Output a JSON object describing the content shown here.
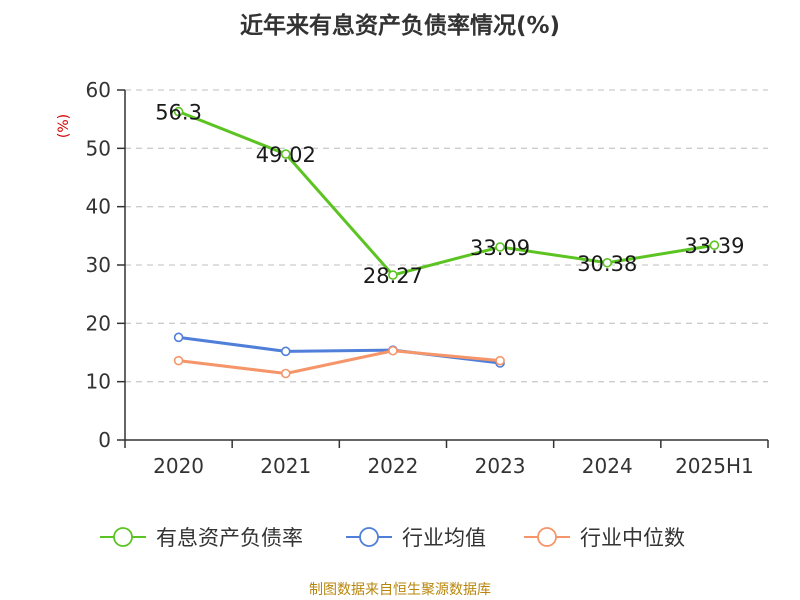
{
  "title": "近年来有息资产负债率情况(%)",
  "source": "制图数据来自恒生聚源数据库",
  "colors": {
    "series1": "#5cc422",
    "series2": "#4f7fd9",
    "series3": "#f5956a",
    "axis": "#333333",
    "grid": "#cccccc",
    "unit": "#d40000",
    "source": "#b8860b"
  },
  "chart_data": {
    "type": "line",
    "title": "近年来有息资产负债率情况(%)",
    "ylabel": "(%)",
    "xlabel": "",
    "categories": [
      "2020",
      "2021",
      "2022",
      "2023",
      "2024",
      "2025H1"
    ],
    "ylim": [
      0,
      60
    ],
    "yticks": [
      0,
      10,
      20,
      30,
      40,
      50,
      60
    ],
    "grid": "horizontal dashed",
    "legend_position": "bottom",
    "series": [
      {
        "name": "有息资产负债率",
        "values": [
          56.3,
          49.02,
          28.27,
          33.09,
          30.38,
          33.39
        ],
        "labels": [
          "56.3",
          "49.02",
          "28.27",
          "33.09",
          "30.38",
          "33.39"
        ],
        "color": "#5cc422"
      },
      {
        "name": "行业均值",
        "values": [
          17.6,
          15.2,
          15.4,
          13.2,
          null,
          null
        ],
        "color": "#4f7fd9"
      },
      {
        "name": "行业中位数",
        "values": [
          13.6,
          11.4,
          15.3,
          13.6,
          null,
          null
        ],
        "color": "#f5956a"
      }
    ]
  }
}
